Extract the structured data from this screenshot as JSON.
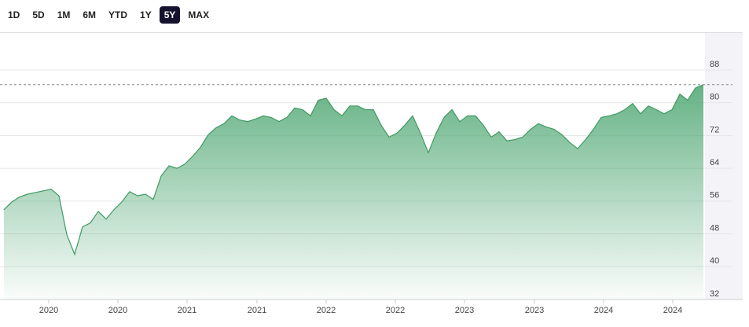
{
  "ranges": [
    "1D",
    "5D",
    "1M",
    "6M",
    "YTD",
    "1Y",
    "5Y",
    "MAX"
  ],
  "active_range": 6,
  "chart_data": {
    "type": "area",
    "color": "#3f9a62",
    "values": [
      53.9,
      55.8,
      57,
      57.7,
      58.1,
      58.5,
      58.9,
      57.3,
      47.8,
      43,
      49.7,
      50.7,
      53.5,
      51.6,
      53.9,
      55.8,
      58.3,
      57.3,
      57.7,
      56.4,
      62.1,
      64.6,
      64,
      65,
      66.9,
      69.1,
      72.2,
      73.9,
      74.9,
      76.8,
      75.8,
      75.4,
      76,
      76.8,
      76.4,
      75.4,
      76.4,
      78.7,
      78.3,
      76.8,
      80.6,
      81.1,
      78.3,
      76.8,
      79.2,
      79.2,
      78.3,
      78.3,
      74.5,
      71.6,
      72.6,
      74.5,
      76.8,
      72.6,
      67.8,
      72.6,
      76.4,
      78.3,
      75.4,
      76.8,
      76.8,
      74.5,
      71.6,
      72.9,
      70.7,
      71,
      71.6,
      73.5,
      74.9,
      74.1,
      73.5,
      72.2,
      70.3,
      68.8,
      71,
      73.5,
      76.4,
      76.8,
      77.3,
      78.3,
      79.8,
      77.3,
      79.2,
      78.3,
      77.3,
      78.3,
      82.1,
      80.6,
      83.6,
      84.4
    ],
    "xlim": [
      0,
      89
    ],
    "xticks": [
      {
        "value": 5.7,
        "label": "2020"
      },
      {
        "value": 14.5,
        "label": "2020"
      },
      {
        "value": 23.3,
        "label": "2021"
      },
      {
        "value": 32.2,
        "label": "2021"
      },
      {
        "value": 41,
        "label": "2022"
      },
      {
        "value": 49.8,
        "label": "2022"
      },
      {
        "value": 58.6,
        "label": "2023"
      },
      {
        "value": 67.5,
        "label": "2023"
      },
      {
        "value": 76.3,
        "label": "2024"
      },
      {
        "value": 85.1,
        "label": "2024"
      }
    ],
    "ylim": [
      32,
      97
    ],
    "yticks": [
      32,
      40,
      48,
      56,
      64,
      72,
      80,
      88
    ],
    "reference_line": 84.4,
    "grid": true
  }
}
